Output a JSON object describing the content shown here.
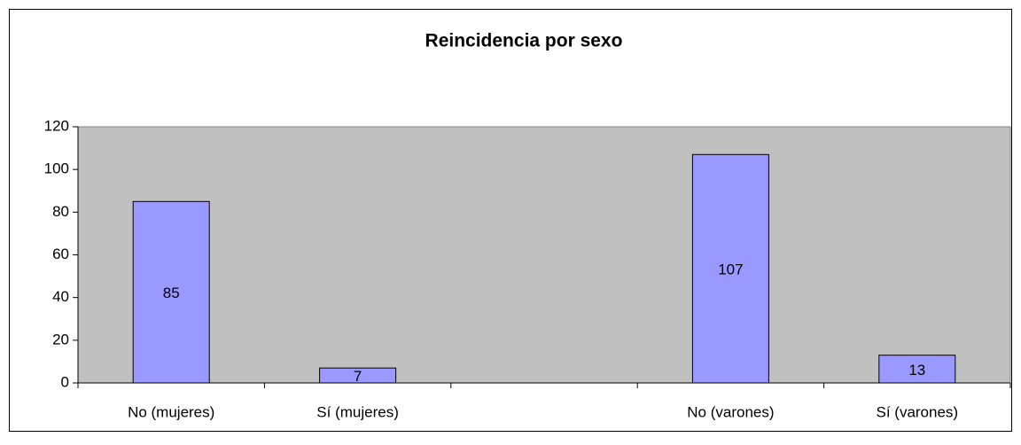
{
  "chart_data": {
    "type": "bar",
    "title": "Reincidencia por sexo",
    "categories": [
      "No (mujeres)",
      "Sí (mujeres)",
      null,
      "No (varones)",
      "Sí (varones)"
    ],
    "values": [
      85,
      7,
      null,
      107,
      13
    ],
    "color": "#9999ff",
    "ylim": [
      0,
      120
    ],
    "yticks": [
      0,
      20,
      40,
      60,
      80,
      100,
      120
    ],
    "grid": false
  }
}
